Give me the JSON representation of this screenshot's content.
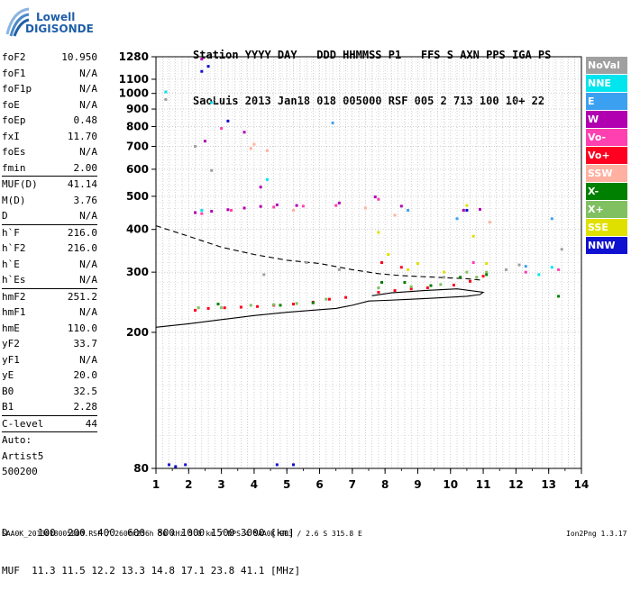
{
  "logo": {
    "line1": "Lowell",
    "line2": "DIGISONDE"
  },
  "header": {
    "line1": "Station YYYY DAY   DDD HHMMSS P1   FFS S AXN PPS IGA PS",
    "line2": "SaoLuis 2013 Jan18 018 005000 RSF 005 2 713 100 10+ 22"
  },
  "params": [
    {
      "label": "foF2",
      "value": "10.950"
    },
    {
      "label": "foF1",
      "value": "N/A"
    },
    {
      "label": "foF1p",
      "value": "N/A"
    },
    {
      "label": "foE",
      "value": "N/A"
    },
    {
      "label": "foEp",
      "value": "0.48"
    },
    {
      "label": "fxI",
      "value": "11.70"
    },
    {
      "label": "foEs",
      "value": "N/A"
    },
    {
      "label": "fmin",
      "value": "2.00",
      "sep": true
    },
    {
      "label": "MUF(D)",
      "value": "41.14"
    },
    {
      "label": "M(D)",
      "value": "3.76"
    },
    {
      "label": "D",
      "value": "N/A",
      "sep": true
    },
    {
      "label": "h`F",
      "value": "216.0"
    },
    {
      "label": "h`F2",
      "value": "216.0"
    },
    {
      "label": "h`E",
      "value": "N/A"
    },
    {
      "label": "h`Es",
      "value": "N/A",
      "sep": true
    },
    {
      "label": "hmF2",
      "value": "251.2"
    },
    {
      "label": "hmF1",
      "value": "N/A"
    },
    {
      "label": "hmE",
      "value": "110.0"
    },
    {
      "label": "yF2",
      "value": "33.7"
    },
    {
      "label": "yF1",
      "value": "N/A"
    },
    {
      "label": "yE",
      "value": "20.0"
    },
    {
      "label": "B0",
      "value": "32.5"
    },
    {
      "label": "B1",
      "value": "2.28",
      "sep": true
    },
    {
      "label": "C-level",
      "value": "44",
      "sep": true
    },
    {
      "label": "Auto:",
      "value": ""
    },
    {
      "label": "Artist5",
      "value": ""
    },
    {
      "label": "500200",
      "value": ""
    }
  ],
  "legend": [
    {
      "label": "NoVal",
      "color": "#a0a0a0"
    },
    {
      "label": "NNE",
      "color": "#00e5ee"
    },
    {
      "label": "E",
      "color": "#3ca0f0"
    },
    {
      "label": "W",
      "color": "#b000b0"
    },
    {
      "label": "Vo-",
      "color": "#ff40b0"
    },
    {
      "label": "Vo+",
      "color": "#ff0020"
    },
    {
      "label": "SSW",
      "color": "#ffb0a0"
    },
    {
      "label": "X-",
      "color": "#008000"
    },
    {
      "label": "X+",
      "color": "#80c060"
    },
    {
      "label": "SSE",
      "color": "#e0e000"
    },
    {
      "label": "NNW",
      "color": "#1010d0"
    }
  ],
  "bottom": {
    "line1": "D     100  200  400  600  800 1000 1500 3000 [km]",
    "line2": "MUF  11.3 11.5 12.2 13.3 14.8 17.1 23.8 41.1 [MHz]"
  },
  "footer": "SAA0K_2013018005000.RSF / 260fx256h 50 kHz 5.0 km / DPS-4 SAA0K 903 / 2.6 S 315.8 E",
  "version": "Ion2Png 1.3.17",
  "chart_data": {
    "type": "scatter",
    "title": "",
    "xlabel": "",
    "ylabel": "",
    "xlim": [
      1,
      14
    ],
    "ylim": [
      80,
      1280
    ],
    "y_scale": "log",
    "x_ticks": [
      1,
      2,
      3,
      4,
      5,
      6,
      7,
      8,
      9,
      10,
      11,
      12,
      13,
      14
    ],
    "y_ticks": [
      80,
      200,
      300,
      400,
      500,
      600,
      700,
      800,
      900,
      1000,
      1100,
      1280
    ],
    "grid": true,
    "legend_position": "right",
    "series": [
      {
        "name": "Vo+",
        "color": "#ff0020",
        "points": [
          [
            2.2,
            232
          ],
          [
            2.6,
            235
          ],
          [
            3.1,
            236
          ],
          [
            3.6,
            237
          ],
          [
            4.1,
            238
          ],
          [
            4.6,
            240
          ],
          [
            5.2,
            242
          ],
          [
            5.8,
            245
          ],
          [
            6.3,
            250
          ],
          [
            6.8,
            253
          ],
          [
            7.8,
            262
          ],
          [
            8.3,
            265
          ],
          [
            8.8,
            268
          ],
          [
            9.3,
            270
          ],
          [
            10.1,
            275
          ],
          [
            10.6,
            282
          ],
          [
            11.0,
            292
          ],
          [
            7.9,
            320
          ],
          [
            8.5,
            310
          ]
        ]
      },
      {
        "name": "W",
        "color": "#b000b0",
        "points": [
          [
            2.2,
            448
          ],
          [
            2.7,
            452
          ],
          [
            3.2,
            457
          ],
          [
            3.7,
            462
          ],
          [
            4.2,
            467
          ],
          [
            4.7,
            472
          ],
          [
            5.3,
            470
          ],
          [
            6.6,
            478
          ],
          [
            7.7,
            498
          ],
          [
            8.5,
            468
          ],
          [
            10.4,
            455
          ],
          [
            10.9,
            458
          ],
          [
            2.4,
            1260
          ],
          [
            2.5,
            725
          ],
          [
            3.7,
            770
          ],
          [
            4.2,
            532
          ]
        ]
      },
      {
        "name": "Vo-",
        "color": "#ff40b0",
        "points": [
          [
            2.4,
            445
          ],
          [
            3.3,
            455
          ],
          [
            4.6,
            465
          ],
          [
            5.5,
            468
          ],
          [
            6.5,
            470
          ],
          [
            7.8,
            490
          ],
          [
            10.7,
            320
          ],
          [
            3.0,
            790
          ],
          [
            12.3,
            300
          ],
          [
            13.3,
            305
          ]
        ]
      },
      {
        "name": "X+",
        "color": "#80c060",
        "points": [
          [
            2.3,
            236
          ],
          [
            3.0,
            236
          ],
          [
            3.9,
            240
          ],
          [
            4.6,
            241
          ],
          [
            5.3,
            243
          ],
          [
            6.2,
            250
          ],
          [
            7.8,
            270
          ],
          [
            8.8,
            272
          ],
          [
            9.7,
            276
          ],
          [
            10.5,
            300
          ],
          [
            10.8,
            290
          ],
          [
            11.1,
            300
          ]
        ]
      },
      {
        "name": "SSE",
        "color": "#e0e000",
        "points": [
          [
            7.8,
            392
          ],
          [
            8.1,
            338
          ],
          [
            8.7,
            305
          ],
          [
            9.0,
            318
          ],
          [
            10.5,
            470
          ],
          [
            10.7,
            382
          ],
          [
            11.1,
            318
          ],
          [
            9.8,
            300
          ]
        ]
      },
      {
        "name": "SSW",
        "color": "#ffb0a0",
        "points": [
          [
            3.9,
            690
          ],
          [
            4.4,
            680
          ],
          [
            4.0,
            710
          ],
          [
            5.2,
            455
          ],
          [
            7.4,
            462
          ],
          [
            8.3,
            440
          ],
          [
            11.2,
            420
          ]
        ]
      },
      {
        "name": "X-",
        "color": "#008000",
        "points": [
          [
            2.9,
            242
          ],
          [
            4.8,
            240
          ],
          [
            5.8,
            244
          ],
          [
            7.9,
            280
          ],
          [
            8.6,
            280
          ],
          [
            9.4,
            274
          ],
          [
            10.3,
            290
          ],
          [
            11.1,
            295
          ],
          [
            13.3,
            255
          ]
        ]
      },
      {
        "name": "NNE",
        "color": "#00e5ee",
        "points": [
          [
            1.3,
            1010
          ],
          [
            2.4,
            455
          ],
          [
            2.7,
            940
          ],
          [
            4.4,
            560
          ],
          [
            12.7,
            295
          ],
          [
            13.1,
            310
          ]
        ]
      },
      {
        "name": "E",
        "color": "#3ca0f0",
        "points": [
          [
            6.4,
            820
          ],
          [
            8.7,
            455
          ],
          [
            10.2,
            430
          ],
          [
            12.3,
            312
          ],
          [
            13.1,
            430
          ]
        ]
      },
      {
        "name": "NNW",
        "color": "#1010d0",
        "points": [
          [
            1.4,
            82
          ],
          [
            1.6,
            81
          ],
          [
            1.9,
            82
          ],
          [
            2.6,
            1200
          ],
          [
            2.4,
            1160
          ],
          [
            3.2,
            830
          ],
          [
            4.7,
            82
          ],
          [
            5.2,
            82
          ],
          [
            10.5,
            455
          ]
        ]
      },
      {
        "name": "NoVal",
        "color": "#a0a0a0",
        "points": [
          [
            1.3,
            960
          ],
          [
            2.2,
            700
          ],
          [
            2.7,
            595
          ],
          [
            4.3,
            295
          ],
          [
            5.6,
            320
          ],
          [
            6.6,
            305
          ],
          [
            9.8,
            290
          ],
          [
            11.7,
            305
          ],
          [
            12.1,
            315
          ],
          [
            13.4,
            350
          ]
        ]
      }
    ],
    "lines": [
      {
        "style": "dashed",
        "points": [
          [
            1.0,
            410
          ],
          [
            2.0,
            382
          ],
          [
            3.0,
            355
          ],
          [
            4.0,
            338
          ],
          [
            5.0,
            325
          ],
          [
            6.0,
            318
          ],
          [
            7.0,
            305
          ],
          [
            7.8,
            297
          ],
          [
            8.5,
            293
          ],
          [
            9.5,
            290
          ],
          [
            10.5,
            287
          ],
          [
            11.0,
            284
          ]
        ]
      },
      {
        "style": "solid",
        "points": [
          [
            1.0,
            207
          ],
          [
            2.0,
            212
          ],
          [
            3.0,
            218
          ],
          [
            4.0,
            224
          ],
          [
            5.0,
            229
          ],
          [
            6.0,
            233
          ],
          [
            6.5,
            235
          ],
          [
            7.0,
            240
          ],
          [
            7.5,
            247
          ],
          [
            8.0,
            248
          ],
          [
            8.8,
            250
          ],
          [
            9.5,
            252
          ],
          [
            10.5,
            255
          ],
          [
            10.9,
            258
          ],
          [
            11.0,
            262
          ],
          [
            10.2,
            268
          ],
          [
            9.2,
            265
          ],
          [
            8.2,
            261
          ],
          [
            7.6,
            256
          ]
        ]
      }
    ]
  }
}
